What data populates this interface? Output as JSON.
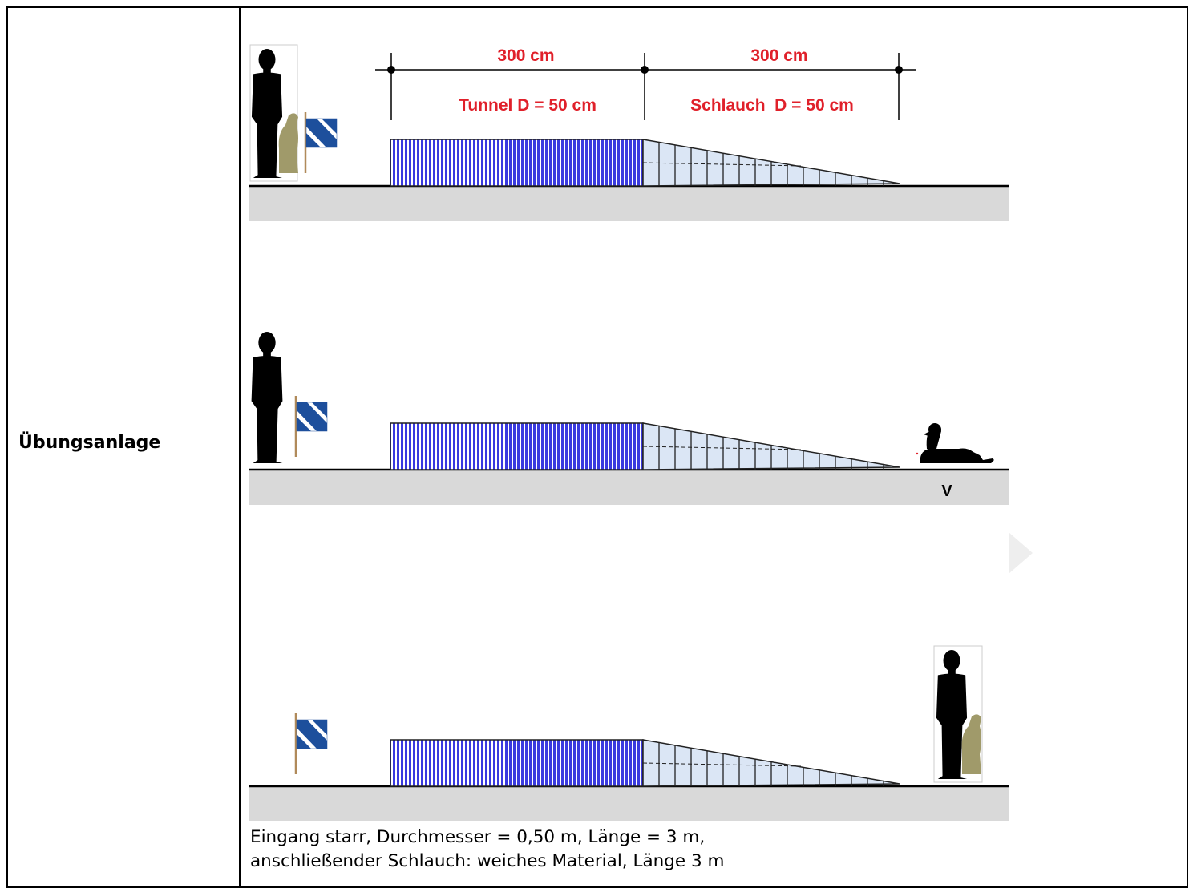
{
  "row": {
    "label": "Übungsanlage"
  },
  "dimensions": {
    "tunnel_length": "300 cm",
    "hose_length": "300 cm",
    "tunnel_label": "Tunnel D = 50 cm",
    "hose_label": "Schlauch  D = 50 cm"
  },
  "scenes": [
    {
      "figure": "handler-with-dog-at-start",
      "flag": "flag-icon"
    },
    {
      "figure": "handler-at-start",
      "flag": "flag-icon",
      "dog": "dog-lying-at-exit",
      "marker": "V"
    },
    {
      "figure": "handler-with-dog-at-exit",
      "flag": "flag-icon"
    }
  ],
  "caption": {
    "line1": "Eingang starr, Durchmesser = 0,50 m, Länge = 3 m,",
    "line2": "anschließender Schlauch: weiches Material, Länge 3 m"
  },
  "colors": {
    "tunnel_fill": "#3a3adf",
    "hose_fill": "#dbe6f5",
    "ground": "#d9d9d9",
    "dimension_text": "#e0202a",
    "flag_blue": "#1d4f9c",
    "dog_khaki": "#a09a6a"
  }
}
